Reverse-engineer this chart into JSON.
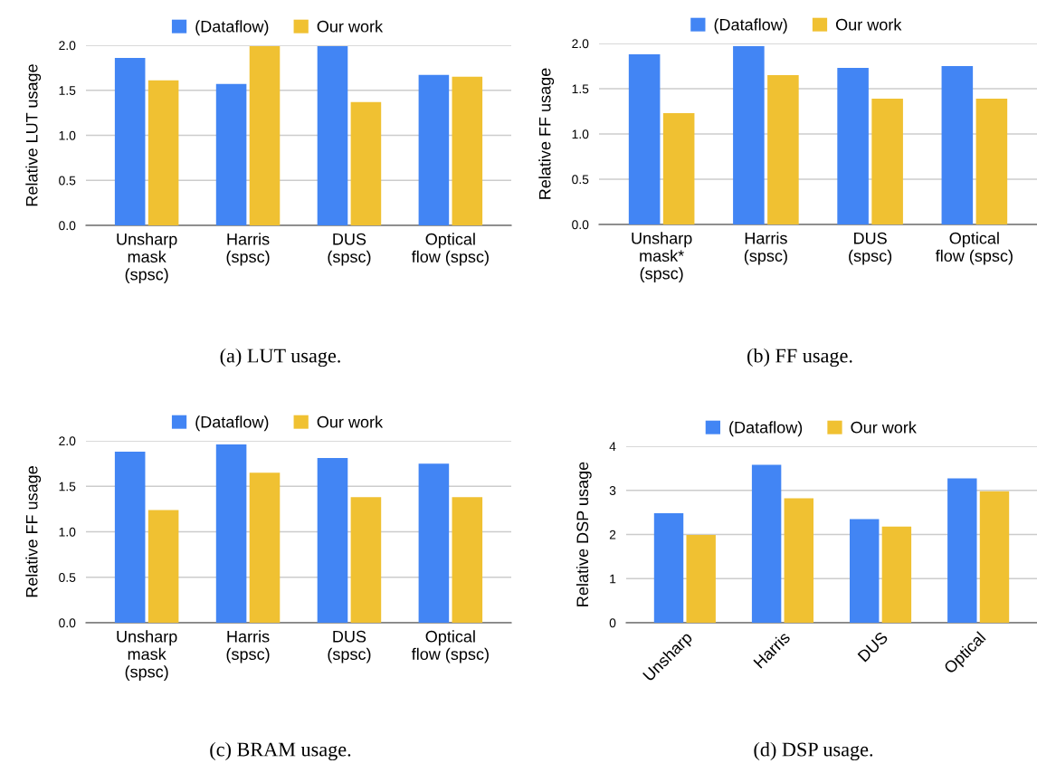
{
  "chart_data": [
    {
      "type": "bar",
      "ylabel": "Relative LUT usage",
      "categories": [
        "Unsharp\nmask\n(spsc)",
        "Harris\n(spsc)",
        "DUS\n(spsc)",
        "Optical\nflow (spsc)"
      ],
      "series": [
        {
          "name": "(Dataflow)",
          "color": "#4285f4",
          "values": [
            1.86,
            1.57,
            1.99,
            1.67
          ]
        },
        {
          "name": "Our work",
          "color": "#f0c132",
          "values": [
            1.61,
            1.99,
            1.37,
            1.65
          ]
        }
      ],
      "ylim": [
        0,
        2.0
      ],
      "yticks": [
        {
          "value": 0,
          "label": "0.0"
        },
        0.5,
        {
          "value": 1,
          "label": "1.0"
        },
        1.5,
        {
          "value": 2,
          "label": "2.0"
        }
      ],
      "grid": "y",
      "legend": "top",
      "annotations": [
        "(a) LUT usage."
      ]
    },
    {
      "type": "bar",
      "ylabel": "Relative FF usage",
      "categories": [
        "Unsharp\nmask*\n(spsc)",
        "Harris\n(spsc)",
        "DUS\n(spsc)",
        "Optical\nflow (spsc)"
      ],
      "series": [
        {
          "name": "(Dataflow)",
          "color": "#4285f4",
          "values": [
            1.88,
            1.97,
            1.73,
            1.75
          ]
        },
        {
          "name": "Our work",
          "color": "#f0c132",
          "values": [
            1.23,
            1.65,
            1.39,
            1.39
          ]
        }
      ],
      "ylim": [
        0,
        2.0
      ],
      "yticks": [
        {
          "value": 0,
          "label": "0.0"
        },
        0.5,
        {
          "value": 1,
          "label": "1.0"
        },
        1.5,
        {
          "value": 2,
          "label": "2.0"
        }
      ],
      "grid": "y",
      "legend": "top",
      "annotations": [
        "(b) FF usage."
      ]
    },
    {
      "type": "bar",
      "ylabel": "Relative FF usage",
      "categories": [
        "Unsharp\nmask\n(spsc)",
        "Harris\n(spsc)",
        "DUS\n(spsc)",
        "Optical\nflow (spsc)"
      ],
      "series": [
        {
          "name": "(Dataflow)",
          "color": "#4285f4",
          "values": [
            1.88,
            1.96,
            1.81,
            1.75
          ]
        },
        {
          "name": "Our work",
          "color": "#f0c132",
          "values": [
            1.24,
            1.65,
            1.38,
            1.38
          ]
        }
      ],
      "ylim": [
        0,
        2.0
      ],
      "yticks": [
        {
          "value": 0,
          "label": "0.0"
        },
        0.5,
        {
          "value": 1,
          "label": "1.0"
        },
        1.5,
        {
          "value": 2,
          "label": "2.0"
        }
      ],
      "grid": "y",
      "legend": "top",
      "annotations": [
        "(c) BRAM usage."
      ]
    },
    {
      "type": "bar",
      "ylabel": "Relative DSP usage",
      "categories": [
        "Unsharp",
        "Harris",
        "DUS",
        "Optical"
      ],
      "series": [
        {
          "name": "(Dataflow)",
          "color": "#4285f4",
          "values": [
            2.48,
            3.58,
            2.35,
            3.27
          ]
        },
        {
          "name": "Our work",
          "color": "#f0c132",
          "values": [
            1.99,
            2.82,
            2.18,
            2.98
          ]
        }
      ],
      "ylim": [
        0,
        4
      ],
      "yticks": [
        0,
        1,
        2,
        3,
        4
      ],
      "grid": "y",
      "legend": "top",
      "annotations": [
        "(d) DSP usage."
      ]
    }
  ]
}
